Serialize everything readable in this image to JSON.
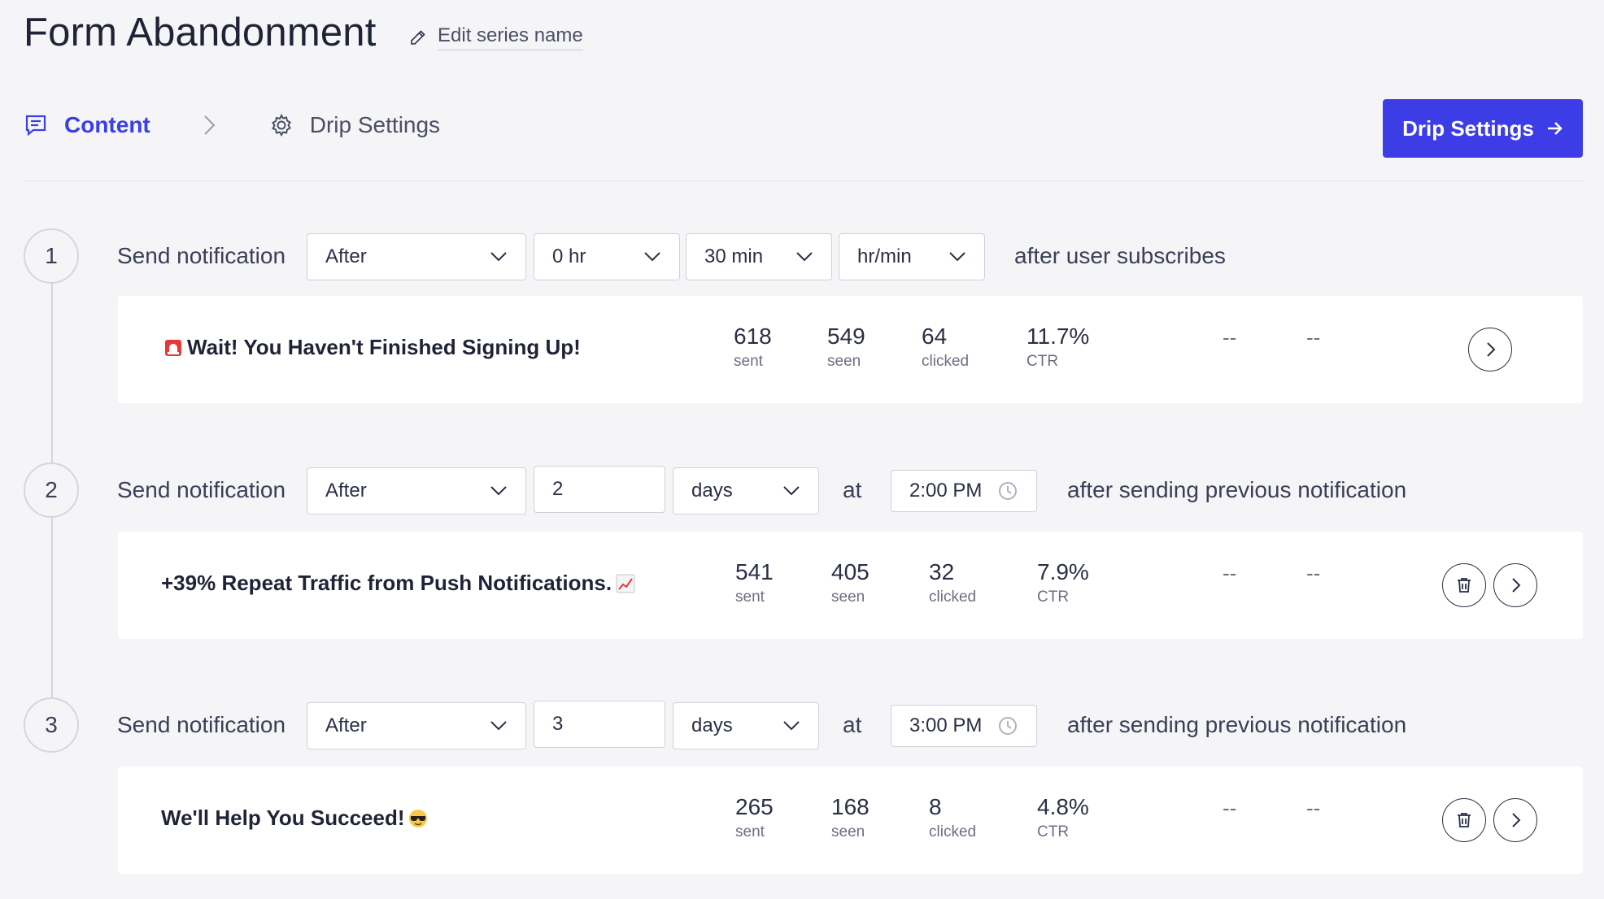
{
  "header": {
    "title": "Form Abandonment",
    "edit_label": "Edit series name"
  },
  "tabs": [
    {
      "label": "Content",
      "icon": "chat-message-icon",
      "active": true
    },
    {
      "label": "Drip Settings",
      "icon": "gear-icon",
      "active": false
    }
  ],
  "primary_button": {
    "label": "Drip Settings",
    "icon": "arrow-right-icon",
    "color": "#3d3de8"
  },
  "steps": [
    {
      "number": "1",
      "label": "Send notification",
      "timing": {
        "when": "After",
        "hours": "0 hr",
        "minutes": "30 min",
        "unit": "hr/min"
      },
      "suffix": "after user subscribes",
      "notification": {
        "emoji": "siren-icon",
        "title": "Wait! You Haven't Finished Signing Up!",
        "sent": "618",
        "seen": "549",
        "clicked": "64",
        "ctr": "11.7%",
        "extra1": "--",
        "extra2": "--"
      }
    },
    {
      "number": "2",
      "label": "Send notification",
      "timing": {
        "when": "After",
        "amount": "2",
        "unit": "days",
        "at_label": "at",
        "time": "2:00 PM"
      },
      "suffix": "after sending previous notification",
      "notification": {
        "emoji": "chart-up-icon",
        "title": "+39% Repeat Traffic from Push Notifications.",
        "sent": "541",
        "seen": "405",
        "clicked": "32",
        "ctr": "7.9%",
        "extra1": "--",
        "extra2": "--"
      }
    },
    {
      "number": "3",
      "label": "Send notification",
      "timing": {
        "when": "After",
        "amount": "3",
        "unit": "days",
        "at_label": "at",
        "time": "3:00 PM"
      },
      "suffix": "after sending previous notification",
      "notification": {
        "emoji": "sunglasses-face-icon",
        "title": "We'll Help You Succeed!",
        "sent": "265",
        "seen": "168",
        "clicked": "8",
        "ctr": "4.8%",
        "extra1": "--",
        "extra2": "--"
      }
    }
  ],
  "stat_labels": {
    "sent": "sent",
    "seen": "seen",
    "clicked": "clicked",
    "ctr": "CTR"
  },
  "colors": {
    "accent": "#3b3fe0",
    "background": "#f5f5f8",
    "card": "#ffffff"
  }
}
